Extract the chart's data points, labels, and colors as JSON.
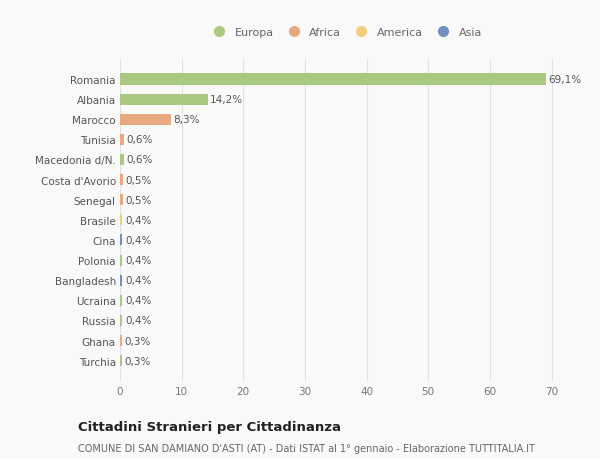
{
  "countries": [
    "Romania",
    "Albania",
    "Marocco",
    "Tunisia",
    "Macedonia d/N.",
    "Costa d'Avorio",
    "Senegal",
    "Brasile",
    "Cina",
    "Polonia",
    "Bangladesh",
    "Ucraina",
    "Russia",
    "Ghana",
    "Turchia"
  ],
  "values": [
    69.1,
    14.2,
    8.3,
    0.6,
    0.6,
    0.5,
    0.5,
    0.4,
    0.4,
    0.4,
    0.4,
    0.4,
    0.4,
    0.3,
    0.3
  ],
  "labels": [
    "69,1%",
    "14,2%",
    "8,3%",
    "0,6%",
    "0,6%",
    "0,5%",
    "0,5%",
    "0,4%",
    "0,4%",
    "0,4%",
    "0,4%",
    "0,4%",
    "0,4%",
    "0,3%",
    "0,3%"
  ],
  "colors": [
    "#a8c97f",
    "#a8c97f",
    "#e8a97f",
    "#e8a97f",
    "#a8c97f",
    "#e8a97f",
    "#e8a97f",
    "#f0d080",
    "#7090c0",
    "#a8c97f",
    "#7090c0",
    "#a8c97f",
    "#a8c97f",
    "#e8a97f",
    "#a8c97f"
  ],
  "legend_labels": [
    "Europa",
    "Africa",
    "America",
    "Asia"
  ],
  "legend_colors": [
    "#a8c97f",
    "#e8a97f",
    "#f0d080",
    "#7090c0"
  ],
  "title": "Cittadini Stranieri per Cittadinanza",
  "subtitle": "COMUNE DI SAN DAMIANO D'ASTI (AT) - Dati ISTAT al 1° gennaio - Elaborazione TUTTITALIA.IT",
  "xlim": [
    0,
    73
  ],
  "xticks": [
    0,
    10,
    20,
    30,
    40,
    50,
    60,
    70
  ],
  "background_color": "#f9f9f9",
  "grid_color": "#e0e0e0",
  "label_fontsize": 7.5,
  "tick_fontsize": 7.5,
  "title_fontsize": 9.5,
  "subtitle_fontsize": 7.0
}
